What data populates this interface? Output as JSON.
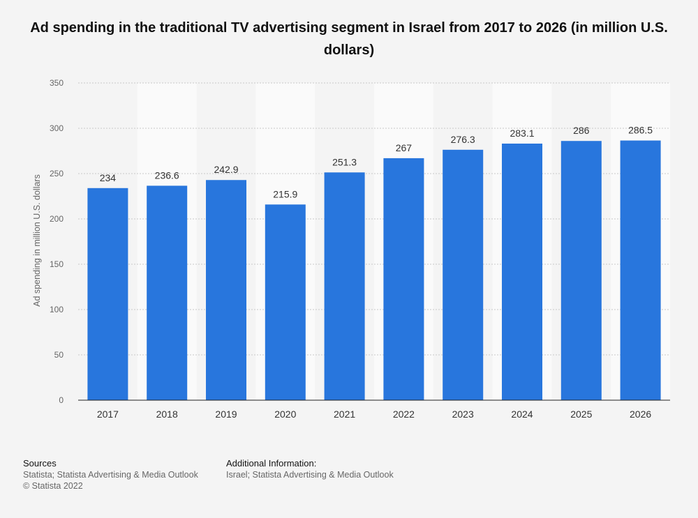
{
  "title": "Ad spending in the traditional TV advertising segment in Israel from 2017 to 2026 (in million U.S. dollars)",
  "chart_data": {
    "type": "bar",
    "categories": [
      "2017",
      "2018",
      "2019",
      "2020",
      "2021",
      "2022",
      "2023",
      "2024",
      "2025",
      "2026"
    ],
    "values": [
      234,
      236.6,
      242.9,
      215.9,
      251.3,
      267,
      276.3,
      283.1,
      286,
      286.5
    ],
    "value_labels": [
      "234",
      "236.6",
      "242.9",
      "215.9",
      "251.3",
      "267",
      "276.3",
      "283.1",
      "286",
      "286.5"
    ],
    "ylabel": "Ad spending in million U.S. dollars",
    "ylim": [
      0,
      350
    ],
    "yticks": [
      0,
      50,
      100,
      150,
      200,
      250,
      300,
      350
    ],
    "grid": true,
    "bar_color": "#2876dd"
  },
  "footer": {
    "sources_heading": "Sources",
    "sources_line1": "Statista; Statista Advertising & Media Outlook",
    "sources_line2": "© Statista 2022",
    "additional_heading": "Additional Information:",
    "additional_line1": "Israel; Statista Advertising & Media Outlook"
  }
}
